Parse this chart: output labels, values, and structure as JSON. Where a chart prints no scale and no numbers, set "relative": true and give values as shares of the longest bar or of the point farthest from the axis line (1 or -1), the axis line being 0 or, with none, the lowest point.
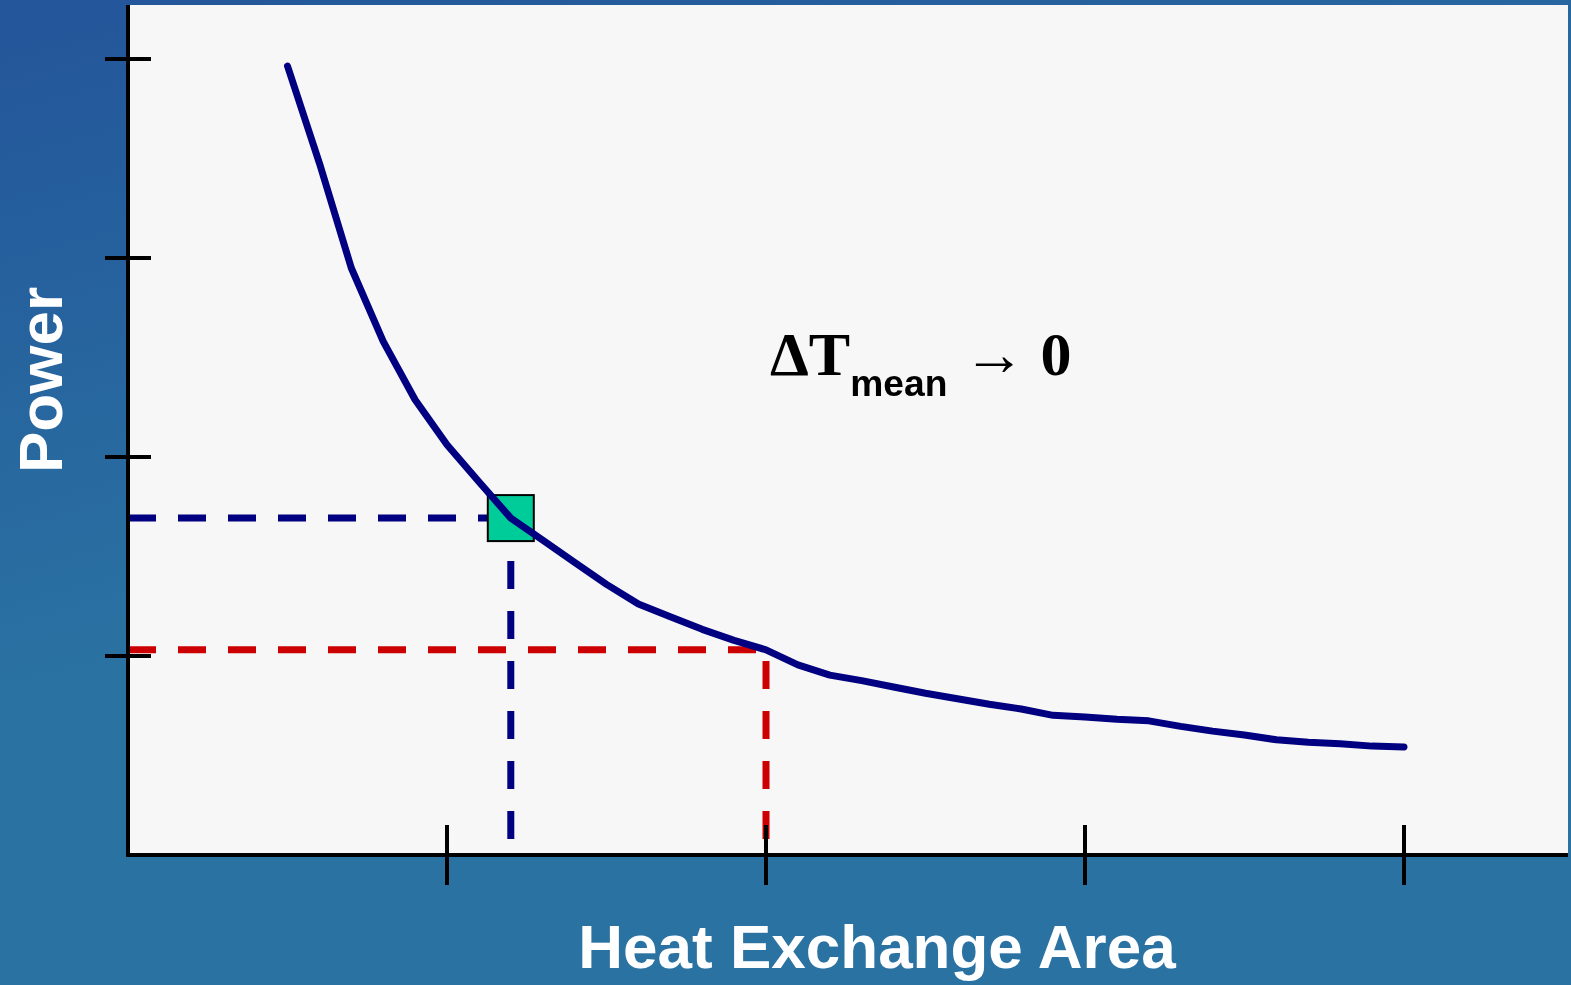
{
  "chart_data": {
    "type": "line",
    "relative": true,
    "xlabel": "Heat Exchange Area",
    "ylabel": "Power",
    "categories": [
      null,
      null,
      null,
      null,
      null,
      null,
      null,
      null,
      null,
      null,
      null,
      null,
      null,
      null,
      null,
      null,
      null,
      null,
      null,
      null,
      null,
      null,
      null,
      null,
      null,
      null,
      null,
      null,
      null,
      null,
      null,
      null,
      null,
      null,
      null,
      null
    ],
    "annotations": [
      "ΔT$_{mean}$ → 0"
    ],
    "ref_lines": [
      {
        "axis": "y",
        "value": 0.427,
        "color": "#000080",
        "line_style": "dashed"
      },
      {
        "axis": "y",
        "value": 0.26,
        "color": "#cc0000",
        "line_style": "dashed"
      }
    ],
    "series": [
      {
        "color": "#000080",
        "line_style": "solid",
        "values": [
          1.0,
          0.877,
          0.744,
          0.651,
          0.577,
          0.52,
          0.473,
          0.427,
          0.399,
          0.371,
          0.343,
          0.318,
          0.302,
          0.286,
          0.272,
          0.26,
          0.241,
          0.228,
          0.221,
          0.213,
          0.205,
          0.198,
          0.191,
          0.185,
          0.177,
          0.175,
          0.172,
          0.17,
          0.163,
          0.157,
          0.152,
          0.146,
          0.143,
          0.141,
          0.138,
          0.137
        ]
      }
    ]
  }
}
